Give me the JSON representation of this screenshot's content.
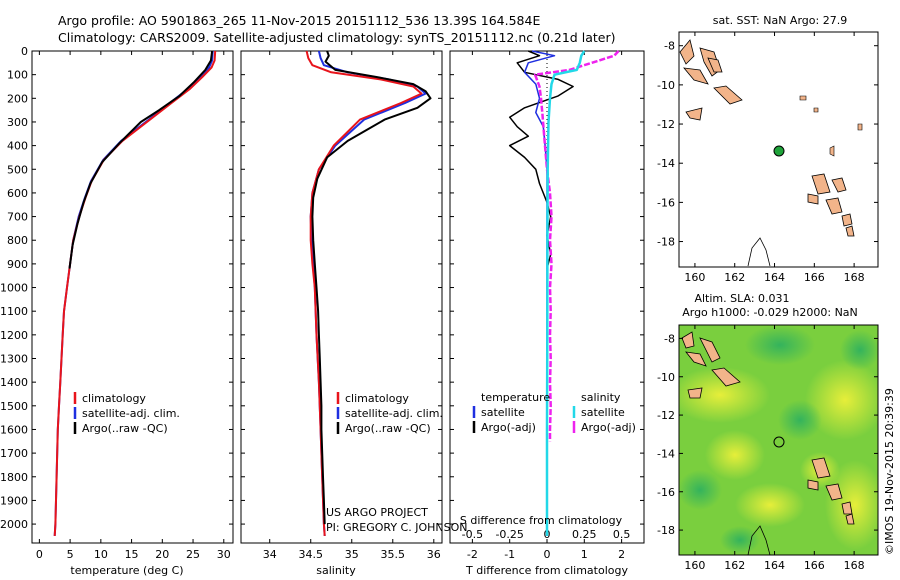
{
  "header": {
    "line1": "Argo profile: AO 5901863_265 11-Nov-2015 20151112_536 13.39S 164.584E",
    "line2": "Climatology: CARS2009. Satellite-adjusted climatology: synTS_20151112.nc (0.21d later)"
  },
  "colors": {
    "climatology": "#e8141b",
    "satellite": "#1f2fe0",
    "argo": "#000000",
    "sal_satellite": "#22d8e8",
    "sal_argo": "#ee22ee",
    "land": "#f2b48a"
  },
  "depth_axis": {
    "ticks": [
      0,
      100,
      200,
      300,
      400,
      500,
      600,
      700,
      800,
      900,
      1000,
      1100,
      1200,
      1300,
      1400,
      1500,
      1600,
      1700,
      1800,
      1900,
      2000
    ],
    "range": [
      0,
      2080
    ]
  },
  "chart_data": [
    {
      "id": "temperature",
      "type": "line",
      "xlabel": "temperature (deg C)",
      "xlim": [
        -1.2,
        31.5
      ],
      "xticks": [
        0,
        5,
        10,
        15,
        20,
        25,
        30
      ],
      "ylim": [
        0,
        2080
      ],
      "legend": [
        "climatology",
        "satellite-adj. clim.",
        "Argo(..raw -QC)"
      ],
      "series": [
        {
          "name": "climatology",
          "points": [
            [
              28.6,
              0
            ],
            [
              28.5,
              40
            ],
            [
              28.0,
              70
            ],
            [
              26.5,
              110
            ],
            [
              24.5,
              160
            ],
            [
              21.5,
              220
            ],
            [
              18.0,
              290
            ],
            [
              13.5,
              380
            ],
            [
              10.5,
              460
            ],
            [
              8.5,
              550
            ],
            [
              7.5,
              620
            ],
            [
              6.5,
              700
            ],
            [
              5.5,
              800
            ],
            [
              5.0,
              900
            ],
            [
              4.5,
              1000
            ],
            [
              4.0,
              1100
            ],
            [
              3.8,
              1200
            ],
            [
              3.6,
              1300
            ],
            [
              3.4,
              1400
            ],
            [
              3.2,
              1500
            ],
            [
              3.0,
              1600
            ],
            [
              2.9,
              1700
            ],
            [
              2.8,
              1800
            ],
            [
              2.7,
              1900
            ],
            [
              2.6,
              2000
            ],
            [
              2.5,
              2050
            ]
          ]
        },
        {
          "name": "satellite",
          "points": [
            [
              28.2,
              0
            ],
            [
              28.1,
              40
            ],
            [
              27.6,
              70
            ],
            [
              26.2,
              110
            ],
            [
              24.2,
              160
            ],
            [
              21.2,
              220
            ],
            [
              17.8,
              290
            ],
            [
              13.3,
              380
            ],
            [
              10.4,
              460
            ],
            [
              8.4,
              550
            ],
            [
              7.4,
              620
            ],
            [
              6.4,
              700
            ],
            [
              5.5,
              800
            ],
            [
              5.0,
              900
            ],
            [
              4.5,
              1000
            ],
            [
              4.0,
              1100
            ],
            [
              3.8,
              1200
            ],
            [
              3.6,
              1300
            ],
            [
              3.4,
              1400
            ],
            [
              3.2,
              1500
            ],
            [
              3.0,
              1600
            ],
            [
              2.9,
              1700
            ],
            [
              2.8,
              1800
            ],
            [
              2.7,
              1900
            ],
            [
              2.6,
              2000
            ],
            [
              2.5,
              2050
            ]
          ]
        },
        {
          "name": "argo",
          "points": [
            [
              28.1,
              0
            ],
            [
              27.9,
              40
            ],
            [
              27.0,
              80
            ],
            [
              25.2,
              130
            ],
            [
              22.8,
              190
            ],
            [
              19.5,
              250
            ],
            [
              16.5,
              300
            ],
            [
              13.0,
              390
            ],
            [
              10.2,
              470
            ],
            [
              8.3,
              560
            ],
            [
              7.2,
              640
            ],
            [
              6.2,
              730
            ],
            [
              5.4,
              820
            ],
            [
              4.9,
              920
            ]
          ]
        }
      ]
    },
    {
      "id": "salinity",
      "type": "line",
      "xlabel": "salinity",
      "xlim": [
        33.65,
        36.1
      ],
      "xticks": [
        34,
        34.5,
        35,
        35.5,
        36
      ],
      "xticklabels": [
        "34",
        "34.5",
        "35",
        "35.5",
        "36"
      ],
      "ylim": [
        0,
        2080
      ],
      "legend": [
        "climatology",
        "satellite-adj. clim.",
        "Argo(..raw -QC)"
      ],
      "annotation_line1": "US ARGO PROJECT",
      "annotation_line2": "PI: GREGORY C. JOHNSON",
      "series": [
        {
          "name": "climatology",
          "points": [
            [
              34.45,
              0
            ],
            [
              34.47,
              30
            ],
            [
              34.52,
              60
            ],
            [
              34.75,
              90
            ],
            [
              35.35,
              120
            ],
            [
              35.75,
              150
            ],
            [
              35.85,
              180
            ],
            [
              35.6,
              220
            ],
            [
              35.1,
              290
            ],
            [
              34.78,
              400
            ],
            [
              34.6,
              500
            ],
            [
              34.52,
              600
            ],
            [
              34.5,
              700
            ],
            [
              34.5,
              800
            ],
            [
              34.52,
              900
            ],
            [
              34.55,
              1000
            ],
            [
              34.57,
              1200
            ],
            [
              34.6,
              1400
            ],
            [
              34.62,
              1600
            ],
            [
              34.64,
              1800
            ],
            [
              34.66,
              2000
            ],
            [
              34.67,
              2050
            ]
          ]
        },
        {
          "name": "satellite",
          "points": [
            [
              34.6,
              0
            ],
            [
              34.62,
              30
            ],
            [
              34.66,
              60
            ],
            [
              34.95,
              90
            ],
            [
              35.45,
              120
            ],
            [
              35.8,
              150
            ],
            [
              35.9,
              180
            ],
            [
              35.65,
              220
            ],
            [
              35.15,
              290
            ],
            [
              34.8,
              400
            ],
            [
              34.6,
              500
            ],
            [
              34.52,
              600
            ],
            [
              34.5,
              700
            ],
            [
              34.51,
              800
            ],
            [
              34.53,
              900
            ],
            [
              34.55,
              1000
            ],
            [
              34.57,
              1200
            ],
            [
              34.6,
              1400
            ],
            [
              34.62,
              1600
            ],
            [
              34.64,
              1800
            ],
            [
              34.66,
              2000
            ],
            [
              34.67,
              2050
            ]
          ]
        },
        {
          "name": "argo",
          "points": [
            [
              34.7,
              0
            ],
            [
              34.72,
              20
            ],
            [
              34.68,
              45
            ],
            [
              34.8,
              80
            ],
            [
              35.3,
              110
            ],
            [
              35.75,
              140
            ],
            [
              35.9,
              170
            ],
            [
              35.96,
              200
            ],
            [
              35.8,
              240
            ],
            [
              35.4,
              290
            ],
            [
              34.95,
              380
            ],
            [
              34.7,
              450
            ],
            [
              34.58,
              540
            ],
            [
              34.53,
              620
            ],
            [
              34.52,
              700
            ],
            [
              34.53,
              800
            ],
            [
              34.55,
              900
            ],
            [
              34.57,
              1000
            ],
            [
              34.59,
              1100
            ],
            [
              34.6,
              1200
            ],
            [
              34.61,
              1300
            ],
            [
              34.62,
              1400
            ],
            [
              34.63,
              1500
            ],
            [
              34.63,
              1600
            ],
            [
              34.64,
              1700
            ],
            [
              34.65,
              1800
            ],
            [
              34.66,
              1900
            ],
            [
              34.67,
              2000
            ]
          ]
        }
      ]
    },
    {
      "id": "differences",
      "type": "line",
      "xlabel": "T difference from climatology",
      "xlabel_top": "S difference from climatology",
      "xlim": [
        -2.6,
        2.6
      ],
      "xticks": [
        -2,
        -1,
        0,
        1,
        2
      ],
      "xticks_s": [
        -0.5,
        -0.25,
        0,
        0.25,
        0.5
      ],
      "xticklabels_s": [
        "-0.5",
        "-0.25",
        "0",
        "0.25",
        "0.5"
      ],
      "ylim": [
        0,
        2080
      ],
      "legend_t_title": "temperature",
      "legend_s_title": "salinity",
      "legend_t": [
        "satellite",
        "Argo(-adj)"
      ],
      "legend_s": [
        "satellite",
        "Argo(-adj)"
      ],
      "series": [
        {
          "name": "T satellite",
          "points": [
            [
              -0.4,
              0
            ],
            [
              0.2,
              20
            ],
            [
              -0.5,
              50
            ],
            [
              -0.6,
              90
            ],
            [
              -0.3,
              140
            ],
            [
              -0.2,
              200
            ],
            [
              -0.3,
              260
            ],
            [
              -0.1,
              320
            ],
            [
              -0.05,
              400
            ],
            [
              0,
              500
            ],
            [
              0,
              700
            ],
            [
              0,
              1000
            ],
            [
              0,
              2050
            ]
          ]
        },
        {
          "name": "T Argo(-adj)",
          "points": [
            [
              -0.5,
              0
            ],
            [
              -0.2,
              20
            ],
            [
              -0.8,
              50
            ],
            [
              -0.6,
              90
            ],
            [
              0.3,
              120
            ],
            [
              0.7,
              150
            ],
            [
              0.3,
              190
            ],
            [
              -0.6,
              240
            ],
            [
              -1.0,
              280
            ],
            [
              -0.8,
              320
            ],
            [
              -0.5,
              360
            ],
            [
              -1.0,
              400
            ],
            [
              -0.6,
              450
            ],
            [
              -0.3,
              500
            ],
            [
              -0.2,
              560
            ],
            [
              0,
              640
            ],
            [
              0.1,
              700
            ],
            [
              0,
              780
            ],
            [
              0.1,
              860
            ],
            [
              0,
              920
            ]
          ]
        },
        {
          "name": "S satellite",
          "points": [
            [
              0.25,
              0
            ],
            [
              0.23,
              20
            ],
            [
              0.22,
              50
            ],
            [
              0.2,
              80
            ],
            [
              0.05,
              100
            ],
            [
              0.03,
              140
            ],
            [
              0.02,
              200
            ],
            [
              0.01,
              300
            ],
            [
              0.005,
              500
            ],
            [
              0.003,
              800
            ],
            [
              0.002,
              1200
            ],
            [
              0,
              1600
            ],
            [
              0,
              2050
            ]
          ]
        },
        {
          "name": "S Argo(-adj)",
          "points": [
            [
              0.48,
              0
            ],
            [
              0.45,
              20
            ],
            [
              0.3,
              50
            ],
            [
              0.15,
              80
            ],
            [
              -0.08,
              100
            ],
            [
              -0.05,
              150
            ],
            [
              -0.04,
              200
            ],
            [
              -0.03,
              270
            ],
            [
              -0.02,
              350
            ],
            [
              0,
              500
            ],
            [
              0.02,
              600
            ],
            [
              0.03,
              700
            ],
            [
              0.02,
              800
            ],
            [
              0.03,
              900
            ],
            [
              0.02,
              1000
            ],
            [
              0.025,
              1100
            ],
            [
              0.02,
              1200
            ],
            [
              0.025,
              1300
            ],
            [
              0.02,
              1400
            ],
            [
              0.025,
              1500
            ],
            [
              0.02,
              1600
            ],
            [
              0.02,
              1650
            ]
          ]
        }
      ]
    }
  ],
  "map_sst": {
    "title": "sat. SST: NaN Argo: 27.9",
    "lon_ticks": [
      160,
      162,
      164,
      166,
      168
    ],
    "lat_ticks": [
      "-8",
      "-10",
      "-12",
      "-14",
      "-16",
      "-18"
    ],
    "marker_lon": 164.584,
    "marker_lat": -13.39
  },
  "map_sla": {
    "title_line1": "Altim. SLA: 0.031",
    "title_line2": "Argo h1000: -0.029 h2000: NaN",
    "lon_ticks": [
      160,
      162,
      164,
      166,
      168
    ],
    "lat_ticks": [
      "-8",
      "-10",
      "-12",
      "-14",
      "-16",
      "-18"
    ],
    "marker_lon": 164.584,
    "marker_lat": -13.39
  },
  "credit": "©IMOS 19-Nov-2015 20:39:39"
}
